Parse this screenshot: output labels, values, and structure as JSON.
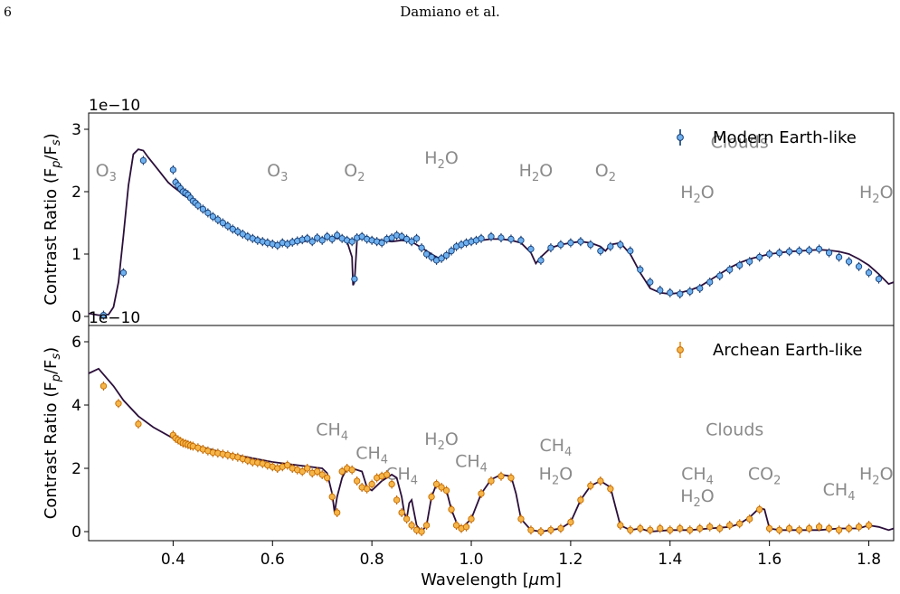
{
  "page": {
    "number": "6",
    "running_head": "Damiano et al."
  },
  "chart_data": [
    {
      "type": "line",
      "panel": "top",
      "offset_label": "1e−10",
      "ylabel": "Contrast Ratio (F",
      "ylabel_sub": "p",
      "ylabel_mid": "/F",
      "ylabel_sub2": "s",
      "ylabel_end": ")",
      "xlim": [
        0.23,
        1.85
      ],
      "ylim": [
        0,
        3
      ],
      "yticks": [
        "0",
        "1",
        "2",
        "3"
      ],
      "legend": {
        "label": "Modern Earth-like",
        "placement": "top-right",
        "color": "#0b3a78"
      },
      "model_color": "#2b0f3a",
      "point_color": "#6fb0ef",
      "point_edge": "#173f76",
      "model": {
        "x": [
          0.23,
          0.25,
          0.27,
          0.28,
          0.29,
          0.3,
          0.31,
          0.32,
          0.33,
          0.34,
          0.35,
          0.36,
          0.37,
          0.38,
          0.39,
          0.4,
          0.41,
          0.42,
          0.43,
          0.44,
          0.45,
          0.46,
          0.48,
          0.5,
          0.52,
          0.54,
          0.56,
          0.58,
          0.6,
          0.62,
          0.64,
          0.66,
          0.68,
          0.7,
          0.72,
          0.74,
          0.75,
          0.76,
          0.762,
          0.765,
          0.768,
          0.77,
          0.78,
          0.8,
          0.82,
          0.84,
          0.86,
          0.88,
          0.9,
          0.92,
          0.93,
          0.94,
          0.95,
          0.96,
          0.98,
          1.0,
          1.02,
          1.04,
          1.06,
          1.08,
          1.1,
          1.12,
          1.13,
          1.14,
          1.16,
          1.18,
          1.2,
          1.22,
          1.24,
          1.26,
          1.27,
          1.28,
          1.3,
          1.32,
          1.34,
          1.36,
          1.38,
          1.4,
          1.42,
          1.44,
          1.46,
          1.48,
          1.5,
          1.52,
          1.54,
          1.56,
          1.58,
          1.6,
          1.62,
          1.64,
          1.66,
          1.68,
          1.7,
          1.72,
          1.74,
          1.76,
          1.78,
          1.8,
          1.82,
          1.84,
          1.85
        ],
        "y": [
          0.05,
          0.02,
          0.03,
          0.15,
          0.55,
          1.3,
          2.1,
          2.6,
          2.68,
          2.66,
          2.55,
          2.45,
          2.35,
          2.25,
          2.15,
          2.08,
          2.02,
          1.95,
          1.9,
          1.84,
          1.78,
          1.72,
          1.6,
          1.48,
          1.38,
          1.3,
          1.24,
          1.2,
          1.18,
          1.17,
          1.17,
          1.2,
          1.22,
          1.24,
          1.26,
          1.25,
          1.2,
          0.95,
          0.5,
          0.55,
          0.95,
          1.22,
          1.26,
          1.24,
          1.22,
          1.2,
          1.22,
          1.2,
          1.1,
          1.0,
          0.95,
          0.92,
          0.95,
          1.05,
          1.15,
          1.2,
          1.22,
          1.24,
          1.24,
          1.22,
          1.18,
          1.02,
          0.85,
          0.95,
          1.1,
          1.15,
          1.18,
          1.2,
          1.18,
          1.12,
          1.05,
          1.15,
          1.18,
          1.0,
          0.7,
          0.45,
          0.38,
          0.36,
          0.38,
          0.42,
          0.48,
          0.58,
          0.68,
          0.78,
          0.86,
          0.92,
          0.96,
          1.0,
          1.02,
          1.04,
          1.05,
          1.06,
          1.07,
          1.06,
          1.04,
          1.0,
          0.92,
          0.82,
          0.68,
          0.52,
          0.55
        ]
      },
      "points": {
        "x": [
          0.26,
          0.3,
          0.34,
          0.4,
          0.405,
          0.41,
          0.415,
          0.42,
          0.425,
          0.43,
          0.435,
          0.44,
          0.445,
          0.45,
          0.46,
          0.47,
          0.48,
          0.49,
          0.5,
          0.51,
          0.52,
          0.53,
          0.54,
          0.55,
          0.56,
          0.57,
          0.58,
          0.59,
          0.6,
          0.61,
          0.62,
          0.63,
          0.64,
          0.65,
          0.66,
          0.67,
          0.68,
          0.69,
          0.7,
          0.71,
          0.72,
          0.73,
          0.74,
          0.75,
          0.76,
          0.765,
          0.77,
          0.78,
          0.79,
          0.8,
          0.81,
          0.82,
          0.83,
          0.84,
          0.85,
          0.86,
          0.87,
          0.88,
          0.89,
          0.9,
          0.91,
          0.92,
          0.93,
          0.94,
          0.95,
          0.96,
          0.97,
          0.98,
          0.99,
          1.0,
          1.01,
          1.02,
          1.04,
          1.06,
          1.08,
          1.1,
          1.12,
          1.14,
          1.16,
          1.18,
          1.2,
          1.22,
          1.24,
          1.26,
          1.28,
          1.3,
          1.32,
          1.34,
          1.36,
          1.38,
          1.4,
          1.42,
          1.44,
          1.46,
          1.48,
          1.5,
          1.52,
          1.54,
          1.56,
          1.58,
          1.6,
          1.62,
          1.64,
          1.66,
          1.68,
          1.7,
          1.72,
          1.74,
          1.76,
          1.78,
          1.8,
          1.82
        ],
        "y": [
          0.02,
          0.7,
          2.5,
          2.35,
          2.15,
          2.1,
          2.05,
          2.0,
          1.98,
          1.95,
          1.9,
          1.85,
          1.82,
          1.78,
          1.72,
          1.66,
          1.6,
          1.55,
          1.5,
          1.45,
          1.4,
          1.36,
          1.32,
          1.28,
          1.25,
          1.22,
          1.2,
          1.18,
          1.16,
          1.14,
          1.18,
          1.16,
          1.19,
          1.21,
          1.23,
          1.25,
          1.2,
          1.26,
          1.22,
          1.28,
          1.24,
          1.3,
          1.25,
          1.22,
          1.2,
          0.6,
          1.26,
          1.28,
          1.24,
          1.22,
          1.2,
          1.18,
          1.24,
          1.26,
          1.3,
          1.28,
          1.24,
          1.2,
          1.25,
          1.1,
          1.0,
          0.95,
          0.9,
          0.93,
          0.98,
          1.05,
          1.12,
          1.15,
          1.18,
          1.2,
          1.22,
          1.25,
          1.28,
          1.26,
          1.24,
          1.22,
          1.08,
          0.9,
          1.1,
          1.15,
          1.18,
          1.2,
          1.15,
          1.05,
          1.12,
          1.15,
          1.05,
          0.75,
          0.55,
          0.42,
          0.38,
          0.36,
          0.4,
          0.45,
          0.55,
          0.65,
          0.75,
          0.82,
          0.88,
          0.95,
          1.0,
          1.02,
          1.04,
          1.05,
          1.06,
          1.08,
          1.02,
          0.95,
          0.88,
          0.8,
          0.7,
          0.6
        ]
      },
      "annotations": [
        {
          "text": "O",
          "sub": "3",
          "x": 0.265,
          "y": 2.25
        },
        {
          "text": "O",
          "sub": "3",
          "x": 0.61,
          "y": 2.25
        },
        {
          "text": "O",
          "sub": "2",
          "x": 0.765,
          "y": 2.25
        },
        {
          "text": "H",
          "sub": "2",
          "tail": "O",
          "x": 0.94,
          "y": 2.45
        },
        {
          "text": "H",
          "sub": "2",
          "tail": "O",
          "x": 1.13,
          "y": 2.25
        },
        {
          "text": "O",
          "sub": "2",
          "x": 1.27,
          "y": 2.25
        },
        {
          "text": "Clouds",
          "x": 1.54,
          "y": 2.7
        },
        {
          "text": "H",
          "sub": "2",
          "tail": "O",
          "x": 1.455,
          "y": 1.9
        },
        {
          "text": "H",
          "sub": "2",
          "tail": "O",
          "x": 1.815,
          "y": 1.9
        }
      ]
    },
    {
      "type": "line",
      "panel": "bottom",
      "offset_label": "1e−10",
      "xlabel": "Wavelength [",
      "xlabel_mu": "μ",
      "xlabel_end": "m]",
      "xlim": [
        0.23,
        1.85
      ],
      "ylim": [
        0,
        6
      ],
      "yticks": [
        "0",
        "2",
        "4",
        "6"
      ],
      "xticks": [
        "0.4",
        "0.6",
        "0.8",
        "1.0",
        "1.2",
        "1.4",
        "1.6",
        "1.8"
      ],
      "xtick_values": [
        0.4,
        0.6,
        0.8,
        1.0,
        1.2,
        1.4,
        1.6,
        1.8
      ],
      "legend": {
        "label": "Archean Earth-like",
        "placement": "top-right",
        "color": "#ef8a0d"
      },
      "model_color": "#2b0f3a",
      "point_color": "#f6b548",
      "point_edge": "#c46a00",
      "model": {
        "x": [
          0.23,
          0.25,
          0.28,
          0.3,
          0.33,
          0.36,
          0.4,
          0.45,
          0.5,
          0.55,
          0.6,
          0.65,
          0.7,
          0.71,
          0.72,
          0.725,
          0.73,
          0.74,
          0.75,
          0.76,
          0.78,
          0.79,
          0.8,
          0.82,
          0.84,
          0.85,
          0.86,
          0.865,
          0.87,
          0.875,
          0.88,
          0.89,
          0.9,
          0.91,
          0.92,
          0.93,
          0.94,
          0.95,
          0.96,
          0.97,
          0.98,
          1.0,
          1.02,
          1.04,
          1.06,
          1.08,
          1.09,
          1.1,
          1.12,
          1.14,
          1.16,
          1.18,
          1.2,
          1.22,
          1.24,
          1.26,
          1.28,
          1.29,
          1.3,
          1.32,
          1.34,
          1.36,
          1.4,
          1.44,
          1.48,
          1.52,
          1.54,
          1.56,
          1.58,
          1.59,
          1.6,
          1.62,
          1.66,
          1.7,
          1.74,
          1.78,
          1.8,
          1.82,
          1.84,
          1.85
        ],
        "y": [
          5.0,
          5.15,
          4.6,
          4.15,
          3.65,
          3.3,
          2.95,
          2.7,
          2.5,
          2.35,
          2.2,
          2.1,
          2.0,
          1.85,
          1.2,
          0.6,
          1.1,
          1.7,
          2.0,
          2.0,
          1.9,
          1.4,
          1.3,
          1.6,
          1.8,
          1.7,
          1.1,
          0.6,
          0.4,
          0.9,
          1.0,
          0.2,
          0.0,
          0.2,
          1.1,
          1.5,
          1.45,
          1.3,
          0.7,
          0.3,
          0.1,
          0.4,
          1.2,
          1.65,
          1.8,
          1.75,
          1.2,
          0.4,
          0.05,
          0.0,
          0.05,
          0.1,
          0.3,
          1.0,
          1.45,
          1.6,
          1.4,
          0.8,
          0.2,
          0.05,
          0.1,
          0.0,
          0.05,
          0.05,
          0.1,
          0.15,
          0.25,
          0.45,
          0.75,
          0.7,
          0.1,
          0.05,
          0.05,
          0.05,
          0.1,
          0.1,
          0.2,
          0.15,
          0.05,
          0.1
        ]
      },
      "points": {
        "x": [
          0.26,
          0.29,
          0.33,
          0.4,
          0.405,
          0.41,
          0.415,
          0.42,
          0.425,
          0.43,
          0.435,
          0.44,
          0.45,
          0.46,
          0.47,
          0.48,
          0.49,
          0.5,
          0.51,
          0.52,
          0.53,
          0.54,
          0.55,
          0.56,
          0.57,
          0.58,
          0.59,
          0.6,
          0.61,
          0.62,
          0.63,
          0.64,
          0.65,
          0.66,
          0.67,
          0.68,
          0.69,
          0.7,
          0.71,
          0.72,
          0.73,
          0.74,
          0.75,
          0.76,
          0.77,
          0.78,
          0.79,
          0.8,
          0.81,
          0.82,
          0.83,
          0.84,
          0.85,
          0.86,
          0.87,
          0.88,
          0.89,
          0.9,
          0.91,
          0.92,
          0.93,
          0.94,
          0.95,
          0.96,
          0.97,
          0.98,
          0.99,
          1.0,
          1.02,
          1.04,
          1.06,
          1.08,
          1.1,
          1.12,
          1.14,
          1.16,
          1.18,
          1.2,
          1.22,
          1.24,
          1.26,
          1.28,
          1.3,
          1.32,
          1.34,
          1.36,
          1.38,
          1.4,
          1.42,
          1.44,
          1.46,
          1.48,
          1.5,
          1.52,
          1.54,
          1.56,
          1.58,
          1.6,
          1.62,
          1.64,
          1.66,
          1.68,
          1.7,
          1.72,
          1.74,
          1.76,
          1.78,
          1.8
        ],
        "y": [
          4.6,
          4.05,
          3.4,
          3.05,
          2.95,
          2.9,
          2.85,
          2.8,
          2.78,
          2.75,
          2.72,
          2.7,
          2.65,
          2.6,
          2.55,
          2.5,
          2.48,
          2.45,
          2.42,
          2.38,
          2.35,
          2.3,
          2.25,
          2.2,
          2.18,
          2.15,
          2.1,
          2.05,
          2.0,
          2.05,
          2.1,
          2.0,
          1.95,
          1.9,
          2.0,
          1.85,
          1.9,
          1.8,
          1.7,
          1.1,
          0.6,
          1.9,
          2.0,
          1.95,
          1.6,
          1.4,
          1.35,
          1.5,
          1.7,
          1.75,
          1.8,
          1.5,
          1.0,
          0.6,
          0.4,
          0.2,
          0.05,
          0.0,
          0.2,
          1.1,
          1.5,
          1.4,
          1.3,
          0.7,
          0.2,
          0.1,
          0.15,
          0.4,
          1.2,
          1.6,
          1.75,
          1.7,
          0.4,
          0.05,
          0.0,
          0.05,
          0.1,
          0.3,
          1.0,
          1.45,
          1.6,
          1.35,
          0.2,
          0.05,
          0.1,
          0.05,
          0.1,
          0.05,
          0.1,
          0.05,
          0.1,
          0.15,
          0.1,
          0.2,
          0.25,
          0.4,
          0.7,
          0.1,
          0.05,
          0.1,
          0.05,
          0.1,
          0.15,
          0.1,
          0.05,
          0.1,
          0.15,
          0.2
        ]
      },
      "annotations": [
        {
          "text": "CH",
          "sub": "4",
          "x": 0.72,
          "y": 3.05
        },
        {
          "text": "CH",
          "sub": "4",
          "x": 0.8,
          "y": 2.3
        },
        {
          "text": "CH",
          "sub": "4",
          "x": 0.86,
          "y": 1.65
        },
        {
          "text": "H",
          "sub": "2",
          "tail": "O",
          "x": 0.94,
          "y": 2.75
        },
        {
          "text": "CH",
          "sub": "4",
          "x": 1.0,
          "y": 2.05
        },
        {
          "text": "CH",
          "sub": "4",
          "x": 1.17,
          "y": 2.55
        },
        {
          "text": "H",
          "sub": "2",
          "tail": "O",
          "x": 1.17,
          "y": 1.65
        },
        {
          "text": "Clouds",
          "x": 1.53,
          "y": 3.05
        },
        {
          "text": "CH",
          "sub": "4",
          "x": 1.455,
          "y": 1.65
        },
        {
          "text": "H",
          "sub": "2",
          "tail": "O",
          "x": 1.455,
          "y": 0.95
        },
        {
          "text": "CO",
          "sub": "2",
          "x": 1.59,
          "y": 1.65
        },
        {
          "text": "CH",
          "sub": "4",
          "x": 1.74,
          "y": 1.15
        },
        {
          "text": "H",
          "sub": "2",
          "tail": "O",
          "x": 1.815,
          "y": 1.65
        }
      ]
    }
  ]
}
